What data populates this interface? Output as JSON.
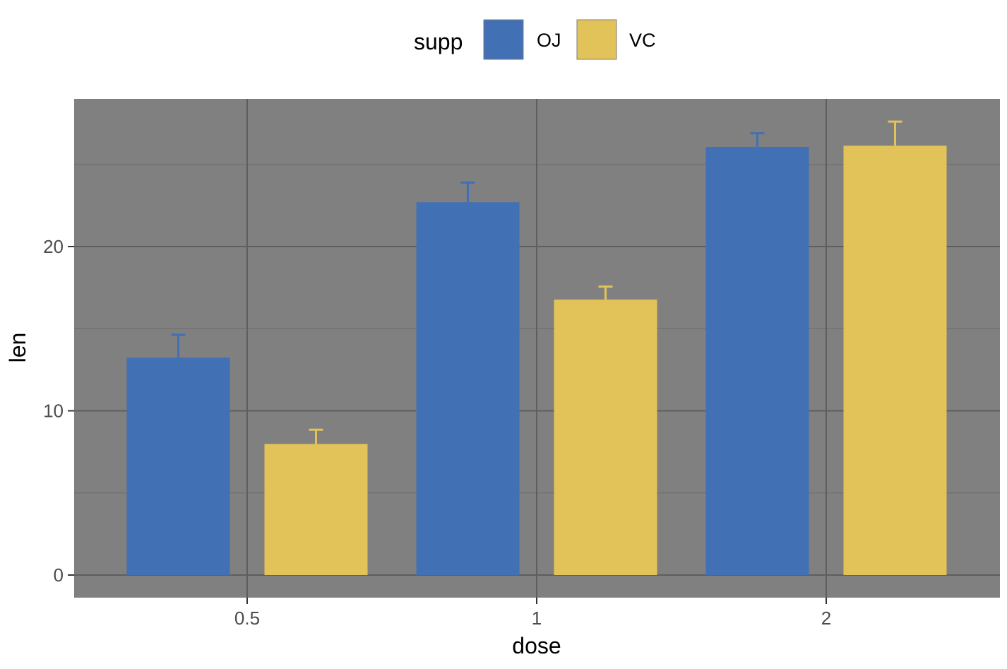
{
  "chart_data": {
    "type": "bar",
    "categories": [
      "0.5",
      "1",
      "2"
    ],
    "series": [
      {
        "name": "OJ",
        "color": "#4170B5",
        "values": [
          13.23,
          22.7,
          26.06
        ],
        "error_upper": [
          14.63,
          23.9,
          26.9
        ]
      },
      {
        "name": "VC",
        "color": "#E2C35A",
        "values": [
          7.98,
          16.77,
          26.14
        ],
        "error_upper": [
          8.85,
          17.56,
          27.61
        ]
      }
    ],
    "title": "",
    "xlabel": "dose",
    "ylabel": "len",
    "ylim": [
      -1.4,
      29
    ],
    "yticks": [
      0,
      10,
      20
    ],
    "legend": {
      "title": "supp",
      "position": "top",
      "entries": [
        "OJ",
        "VC"
      ]
    },
    "panel_background": "#808080",
    "grid": true,
    "error_bars": "upper"
  }
}
